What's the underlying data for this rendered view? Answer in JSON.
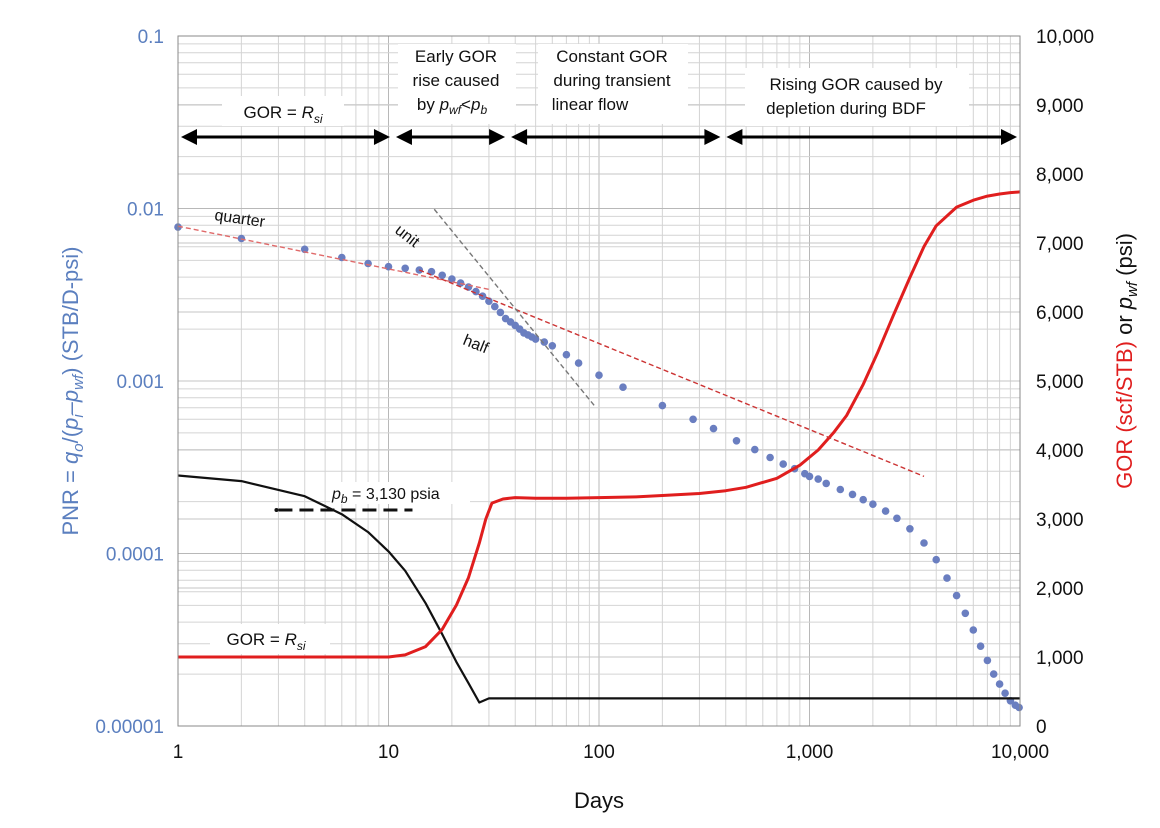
{
  "chart_data": {
    "type": "line",
    "xlabel": "Days",
    "x_scale": "log",
    "xlim": [
      1,
      10000
    ],
    "x_ticks": [
      {
        "value": 1,
        "label": "1"
      },
      {
        "value": 10,
        "label": "10"
      },
      {
        "value": 100,
        "label": "100"
      },
      {
        "value": 1000,
        "label": "1,000"
      },
      {
        "value": 10000,
        "label": "10,000"
      }
    ],
    "y_left": {
      "label_parts": [
        {
          "text": "PNR = "
        },
        {
          "text": "q",
          "italic": true
        },
        {
          "text": "o",
          "sub": true,
          "italic": true
        },
        {
          "text": "/("
        },
        {
          "text": "p",
          "italic": true
        },
        {
          "text": "i",
          "sub": true,
          "italic": true
        },
        {
          "text": "–"
        },
        {
          "text": "p",
          "italic": true
        },
        {
          "text": "wf",
          "sub": true,
          "italic": true
        },
        {
          "text": ") (STB/D-psi)"
        }
      ],
      "scale": "log",
      "lim": [
        1e-05,
        0.1
      ],
      "color": "#5b7fbf",
      "ticks": [
        {
          "value": 0.1,
          "label": "0.1"
        },
        {
          "value": 0.01,
          "label": "0.01"
        },
        {
          "value": 0.001,
          "label": "0.001"
        },
        {
          "value": 0.0001,
          "label": "0.0001"
        },
        {
          "value": 1e-05,
          "label": "0.00001"
        }
      ]
    },
    "y_right": {
      "label_gor": "GOR (scf/STB)",
      "label_or": " or ",
      "label_p": "p",
      "label_p_sub": "wf",
      "label_unit": " (psi)",
      "scale": "linear",
      "lim": [
        0,
        10000
      ],
      "gor_color": "#e01e1e",
      "ticks": [
        {
          "value": 0,
          "label": "0"
        },
        {
          "value": 1000,
          "label": "1,000"
        },
        {
          "value": 2000,
          "label": "2,000"
        },
        {
          "value": 3000,
          "label": "3,000"
        },
        {
          "value": 4000,
          "label": "4,000"
        },
        {
          "value": 5000,
          "label": "5,000"
        },
        {
          "value": 6000,
          "label": "6,000"
        },
        {
          "value": 7000,
          "label": "7,000"
        },
        {
          "value": 8000,
          "label": "8,000"
        },
        {
          "value": 9000,
          "label": "9,000"
        },
        {
          "value": 10000,
          "label": "10,000"
        }
      ]
    },
    "grid": true,
    "series": [
      {
        "key": "pnr",
        "axis": "left",
        "style": "points",
        "color": "#6a7ec0",
        "x": [
          1,
          2,
          4,
          6,
          8,
          10,
          12,
          14,
          16,
          18,
          20,
          22,
          24,
          26,
          28,
          30,
          32,
          34,
          36,
          38,
          40,
          42,
          44,
          46,
          48,
          50,
          55,
          60,
          70,
          80,
          100,
          130,
          200,
          280,
          350,
          450,
          550,
          650,
          750,
          850,
          950,
          1000,
          1100,
          1200,
          1400,
          1600,
          1800,
          2000,
          2300,
          2600,
          3000,
          3500,
          4000,
          4500,
          5000,
          5500,
          6000,
          6500,
          7000,
          7500,
          8000,
          8500,
          9000,
          9500,
          9900
        ],
        "y": [
          0.0078,
          0.0067,
          0.0058,
          0.0052,
          0.0048,
          0.0046,
          0.0045,
          0.0044,
          0.0043,
          0.0041,
          0.0039,
          0.0037,
          0.0035,
          0.0033,
          0.0031,
          0.0029,
          0.0027,
          0.0025,
          0.0023,
          0.0022,
          0.0021,
          0.002,
          0.0019,
          0.00185,
          0.0018,
          0.00175,
          0.00168,
          0.0016,
          0.00142,
          0.00127,
          0.00108,
          0.00092,
          0.00072,
          0.0006,
          0.00053,
          0.00045,
          0.0004,
          0.00036,
          0.00033,
          0.00031,
          0.00029,
          0.00028,
          0.00027,
          0.000255,
          0.000235,
          0.00022,
          0.000205,
          0.000193,
          0.000176,
          0.00016,
          0.000139,
          0.000115,
          9.2e-05,
          7.2e-05,
          5.7e-05,
          4.5e-05,
          3.6e-05,
          2.9e-05,
          2.4e-05,
          2e-05,
          1.75e-05,
          1.55e-05,
          1.4e-05,
          1.32e-05,
          1.28e-05
        ]
      },
      {
        "key": "pwf",
        "axis": "right",
        "style": "line",
        "color": "#111111",
        "x": [
          1,
          2,
          4,
          6,
          8,
          10,
          12,
          15,
          18,
          21,
          24,
          27,
          30,
          40,
          100,
          1000,
          10000
        ],
        "y": [
          3630,
          3550,
          3330,
          3070,
          2810,
          2530,
          2250,
          1780,
          1330,
          930,
          620,
          340,
          400,
          400,
          400,
          400,
          400
        ]
      },
      {
        "key": "gor",
        "axis": "right",
        "style": "line",
        "color": "#e01e1e",
        "x": [
          1,
          10,
          12,
          15,
          18,
          21,
          24,
          27,
          29,
          31,
          35,
          40,
          50,
          70,
          100,
          150,
          200,
          300,
          400,
          500,
          700,
          900,
          1100,
          1300,
          1500,
          1800,
          2100,
          2500,
          3000,
          3500,
          4000,
          5000,
          6000,
          7000,
          8000,
          9000,
          10000
        ],
        "y": [
          1000,
          1000,
          1030,
          1150,
          1400,
          1750,
          2150,
          2650,
          3000,
          3230,
          3290,
          3310,
          3300,
          3300,
          3310,
          3320,
          3340,
          3370,
          3410,
          3460,
          3590,
          3780,
          4000,
          4250,
          4500,
          4950,
          5400,
          5950,
          6500,
          6950,
          7250,
          7520,
          7620,
          7680,
          7710,
          7730,
          7740
        ]
      }
    ],
    "reference_lines": [
      {
        "key": "quarter",
        "label": "quarter",
        "color": "#e06a6a",
        "x": [
          1,
          30
        ],
        "y": [
          0.0079,
          0.0034
        ]
      },
      {
        "key": "half",
        "label": "half",
        "color": "#cc3333",
        "x": [
          14,
          3500
        ],
        "y": [
          0.0044,
          0.00028
        ]
      },
      {
        "key": "unit",
        "label": "unit",
        "color": "#777777",
        "x": [
          16.5,
          95
        ],
        "y": [
          0.0099,
          0.00072
        ]
      },
      {
        "key": "pb",
        "label_prefix": "p",
        "label_sub": "b",
        "label_suffix": " = 3,130 psia",
        "color": "#111111",
        "x": [
          3,
          13
        ],
        "y": [
          3130,
          3130
        ]
      }
    ],
    "regions": [
      {
        "x_from": 1,
        "x_to": 10.5,
        "lines": [
          "GOR = R_si"
        ]
      },
      {
        "x_from": 10.5,
        "x_to": 37,
        "lines": [
          "Early GOR",
          "rise caused",
          "by p_wf<p_b"
        ]
      },
      {
        "x_from": 37,
        "x_to": 390,
        "lines": [
          "Constant GOR",
          "during transient",
          "linear flow"
        ]
      },
      {
        "x_from": 390,
        "x_to": 10000,
        "lines": [
          "Rising GOR caused by",
          "depletion during BDF"
        ]
      }
    ],
    "annotations": {
      "gor_rsi_prefix": "GOR = ",
      "gor_rsi_r": "R",
      "gor_rsi_sub": "si",
      "early_line1": "Early GOR",
      "early_line2": "rise caused",
      "early_line3_a": "by ",
      "early_line3_p1": "p",
      "early_line3_s1": "wf",
      "early_line3_lt": "<",
      "early_line3_p2": "p",
      "early_line3_s2": "b",
      "constant_line1": "Constant GOR",
      "constant_line2": "during transient",
      "constant_line3": "linear flow",
      "rising_line1": "Rising GOR caused by",
      "rising_line2": "depletion during BDF"
    }
  }
}
